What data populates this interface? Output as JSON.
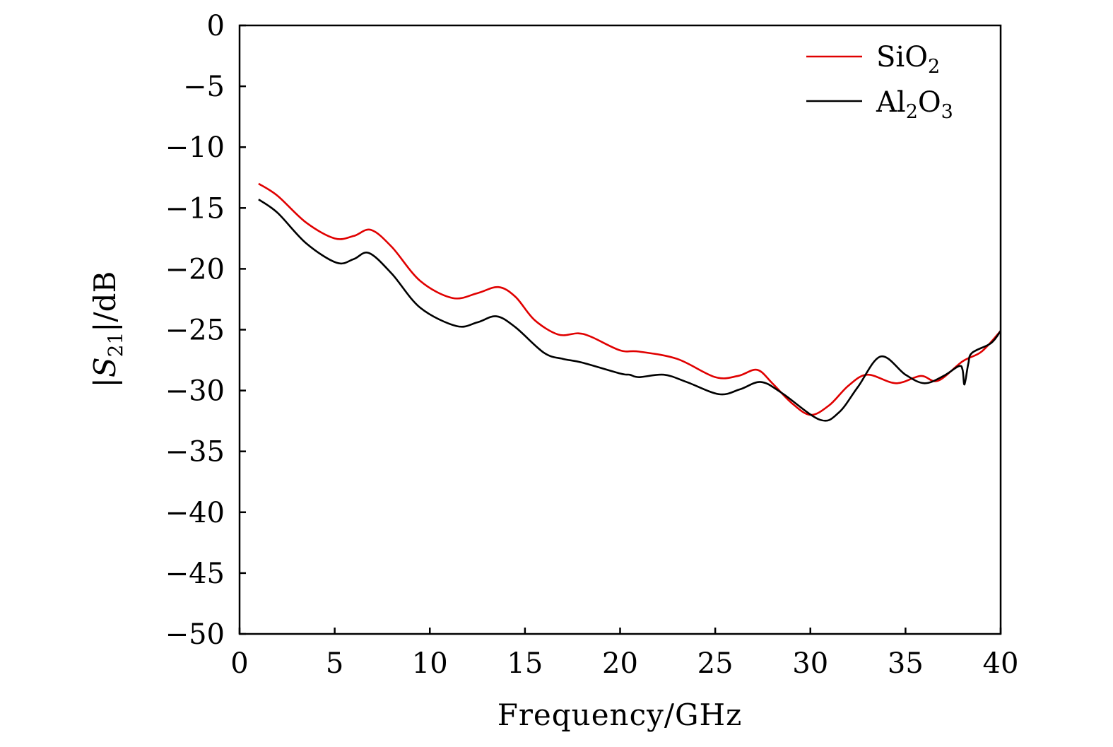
{
  "chart_data": {
    "type": "line",
    "title": "",
    "xlabel": "Frequency/GHz",
    "ylabel": "|S21|/dB",
    "ylabel_parts": {
      "pre": "|",
      "var": "S",
      "sub": "21",
      "post": "|/dB"
    },
    "xlim": [
      0,
      40
    ],
    "ylim": [
      -50,
      0
    ],
    "xticks": [
      0,
      5,
      10,
      15,
      20,
      25,
      30,
      35,
      40
    ],
    "yticks": [
      0,
      -5,
      -10,
      -15,
      -20,
      -25,
      -30,
      -35,
      -40,
      -45,
      -50
    ],
    "grid": false,
    "legend_position": "top-right",
    "series": [
      {
        "name": "SiO2",
        "legend_base": "SiO",
        "legend_sub": "2",
        "color": "#e00000",
        "x": [
          1.0,
          2.0,
          3.5,
          5.0,
          6.0,
          6.9,
          8.0,
          9.5,
          11.2,
          12.5,
          13.6,
          14.5,
          15.5,
          16.75,
          17.8,
          18.5,
          20.0,
          21.0,
          23.0,
          25.0,
          26.2,
          27.2,
          28.0,
          29.0,
          30.0,
          31.0,
          32.0,
          33.0,
          34.5,
          35.8,
          36.7,
          38.0,
          39.0,
          40.0
        ],
        "y": [
          -13.0,
          -14.0,
          -16.2,
          -17.5,
          -17.3,
          -16.8,
          -18.2,
          -21.0,
          -22.4,
          -22.0,
          -21.5,
          -22.3,
          -24.2,
          -25.4,
          -25.3,
          -25.6,
          -26.7,
          -26.8,
          -27.4,
          -28.9,
          -28.8,
          -28.3,
          -29.4,
          -31.0,
          -32.0,
          -31.2,
          -29.6,
          -28.7,
          -29.4,
          -28.8,
          -29.2,
          -27.6,
          -26.8,
          -25.1
        ]
      },
      {
        "name": "Al2O3",
        "legend_base": "Al",
        "legend_sub": "2",
        "legend_mid": "O",
        "legend_sub2": "3",
        "color": "#000000",
        "x": [
          1.0,
          2.0,
          3.5,
          5.1,
          6.0,
          6.8,
          8.0,
          9.5,
          11.4,
          12.5,
          13.5,
          14.5,
          16.0,
          17.0,
          18.0,
          20.0,
          20.5,
          21.0,
          22.3,
          23.5,
          25.2,
          26.3,
          27.4,
          28.5,
          30.5,
          31.5,
          32.5,
          33.7,
          35.0,
          36.0,
          37.0,
          37.8,
          38.0,
          38.1,
          38.3,
          38.5,
          39.5,
          40.0
        ],
        "y": [
          -14.3,
          -15.4,
          -17.9,
          -19.5,
          -19.2,
          -18.7,
          -20.4,
          -23.2,
          -24.7,
          -24.4,
          -23.9,
          -24.8,
          -26.9,
          -27.4,
          -27.7,
          -28.6,
          -28.7,
          -28.9,
          -28.7,
          -29.3,
          -30.3,
          -29.9,
          -29.3,
          -30.2,
          -32.4,
          -31.8,
          -29.7,
          -27.2,
          -28.7,
          -29.4,
          -28.8,
          -28.0,
          -28.3,
          -29.5,
          -27.8,
          -26.9,
          -26.1,
          -25.1
        ]
      }
    ]
  }
}
